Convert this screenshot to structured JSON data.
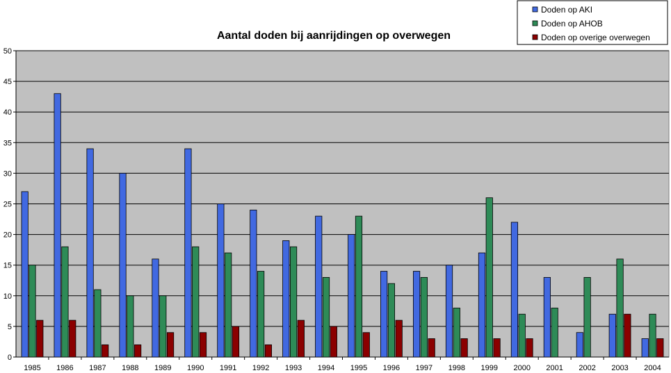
{
  "chart_data": {
    "type": "bar",
    "title": "Aantal doden bij aanrijdingen op overwegen",
    "xlabel": "",
    "ylabel": "",
    "ylim": [
      0,
      50
    ],
    "yticks": [
      "0",
      "5",
      "10",
      "15",
      "20",
      "25",
      "30",
      "35",
      "40",
      "45",
      "50"
    ],
    "grid": true,
    "legend_position": "top-right",
    "categories": [
      "1985",
      "1986",
      "1987",
      "1988",
      "1989",
      "1990",
      "1991",
      "1992",
      "1993",
      "1994",
      "1995",
      "1996",
      "1997",
      "1998",
      "1999",
      "2000",
      "2001",
      "2002",
      "2003",
      "2004"
    ],
    "series": [
      {
        "name": "Doden op AKI",
        "color": "#4169E1",
        "values": [
          27,
          43,
          34,
          30,
          16,
          34,
          25,
          24,
          19,
          23,
          20,
          14,
          14,
          15,
          17,
          22,
          13,
          4,
          7,
          3
        ]
      },
      {
        "name": "Doden op AHOB",
        "color": "#2E8B57",
        "values": [
          15,
          18,
          11,
          10,
          10,
          18,
          17,
          14,
          18,
          13,
          23,
          12,
          13,
          8,
          26,
          7,
          8,
          13,
          16,
          7
        ]
      },
      {
        "name": "Doden op overige overwegen",
        "color": "#8B0000",
        "values": [
          6,
          6,
          2,
          2,
          4,
          4,
          5,
          2,
          6,
          5,
          4,
          6,
          3,
          3,
          3,
          3,
          0,
          0,
          7,
          3
        ]
      }
    ],
    "plot_background": "#C0C0C0"
  }
}
